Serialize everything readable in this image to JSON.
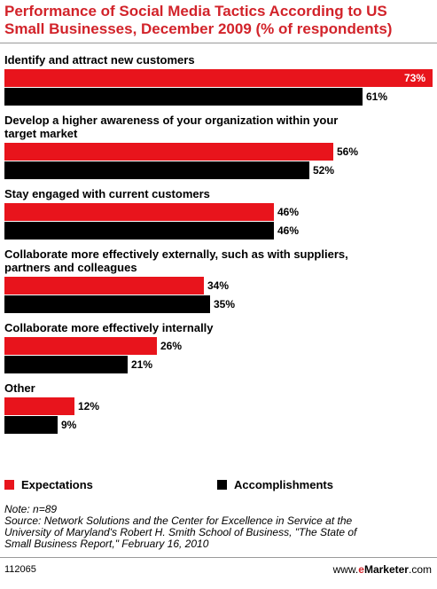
{
  "header": {
    "title_line1": "Performance of Social Media Tactics According to US",
    "title_line2": "Small Businesses, December 2009 (% of respondents)"
  },
  "colors": {
    "expectations": "#e8141c",
    "accomplishments": "#000000"
  },
  "chart_data": {
    "type": "bar",
    "orientation": "horizontal",
    "categories": [
      [
        "Identify and attract new customers"
      ],
      [
        "Develop a higher awareness of your organization within your",
        "target market"
      ],
      [
        "Stay engaged with current customers"
      ],
      [
        "Collaborate more effectively externally, such as with suppliers,",
        "partners and colleagues"
      ],
      [
        "Collaborate more effectively internally"
      ],
      [
        "Other"
      ]
    ],
    "series": [
      {
        "name": "Expectations",
        "values": [
          73,
          56,
          46,
          34,
          26,
          12
        ]
      },
      {
        "name": "Accomplishments",
        "values": [
          61,
          52,
          46,
          35,
          21,
          9
        ]
      }
    ],
    "value_suffix": "%",
    "xlim": [
      0,
      73
    ],
    "legend_position": "bottom",
    "grid": false
  },
  "notes": {
    "line1": "Note: n=89",
    "line2": "Source: Network Solutions and the Center for Excellence in Service at the",
    "line3": "University of Maryland's Robert H. Smith School of Business, \"The State of",
    "line4": "Small Business Report,\" February 16, 2010"
  },
  "footer": {
    "id": "112065",
    "brand_prefix": "www.",
    "brand_e": "e",
    "brand_name": "Marketer",
    "brand_suffix": ".com"
  }
}
